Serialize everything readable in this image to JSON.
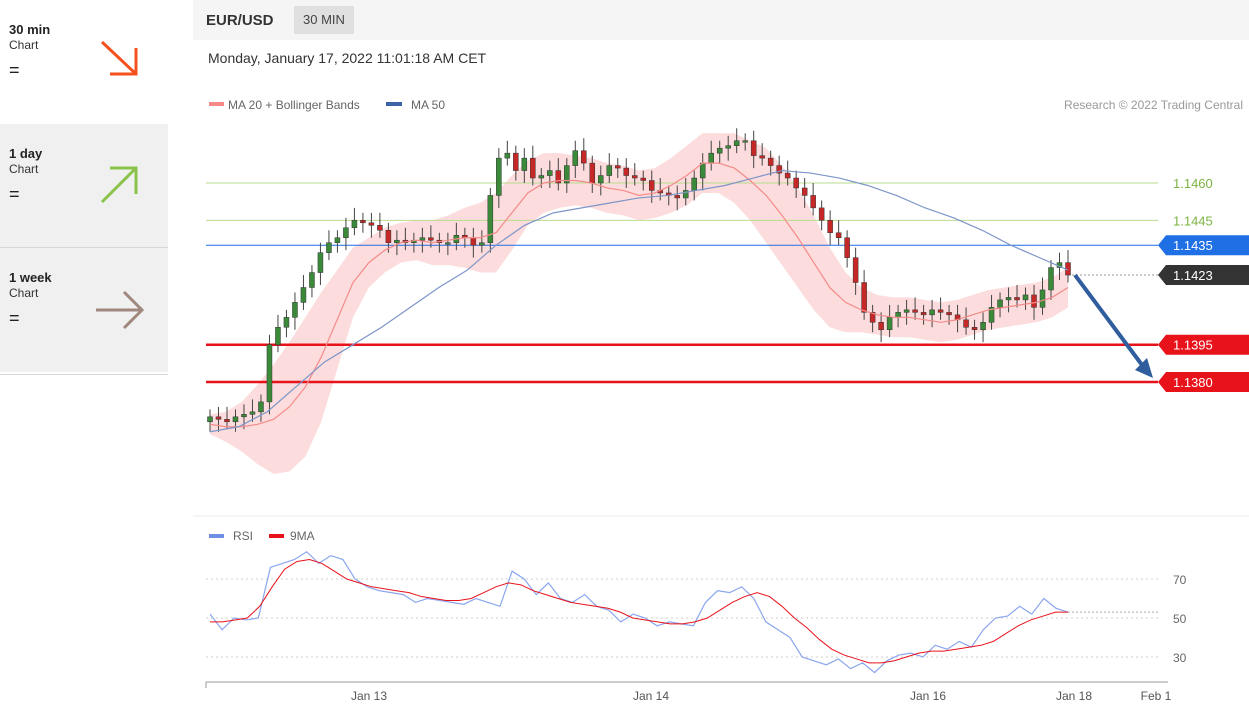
{
  "sidebar": {
    "items": [
      {
        "title": "30 min",
        "sub": "Chart",
        "sign": "=",
        "direction": "down",
        "color": "#f4511e"
      },
      {
        "title": "1 day",
        "sub": "Chart",
        "sign": "=",
        "direction": "up",
        "color": "#8bc34a"
      },
      {
        "title": "1 week",
        "sub": "Chart",
        "sign": "=",
        "direction": "flat",
        "color": "#a1887f"
      }
    ]
  },
  "header": {
    "symbol": "EUR/USD",
    "timeframe": "30 MIN",
    "datetime": "Monday, January 17, 2022 11:01:18 AM CET"
  },
  "chart_data": [
    {
      "type": "candlestick",
      "legend": [
        {
          "name": "MA 20 + Bollinger Bands",
          "color": "#f48a8a"
        },
        {
          "name": "MA 50",
          "color": "#3f63a8"
        }
      ],
      "credit": "Research © 2022 Trading Central",
      "ylim": [
        1.1355,
        1.1495
      ],
      "x_ticks": [
        "Jan 13",
        "Jan 14",
        "Jan 16",
        "Jan 18",
        "Feb 1"
      ],
      "levels": [
        {
          "label": "1.1460",
          "value": 1.146,
          "color": "#7cb342",
          "style": "thin-text"
        },
        {
          "label": "1.1445",
          "value": 1.1445,
          "color": "#7cb342",
          "style": "thin-text"
        },
        {
          "label": "1.1435",
          "value": 1.1435,
          "color": "#1f6fe5",
          "style": "badge"
        },
        {
          "label": "1.1423",
          "value": 1.1423,
          "color": "#333333",
          "style": "badge-current"
        },
        {
          "label": "1.1395",
          "value": 1.1395,
          "color": "#e8121b",
          "style": "badge-thick"
        },
        {
          "label": "1.1380",
          "value": 1.138,
          "color": "#e8121b",
          "style": "badge-thick"
        }
      ],
      "forecast_arrow": {
        "from": 1.1423,
        "to": 1.138,
        "color": "#2f5d9e"
      },
      "close_series": [
        1.1366,
        1.1365,
        1.1364,
        1.1366,
        1.1367,
        1.1368,
        1.1372,
        1.1395,
        1.1402,
        1.1406,
        1.1412,
        1.1418,
        1.1424,
        1.1432,
        1.1436,
        1.1438,
        1.1442,
        1.1445,
        1.1444,
        1.1443,
        1.1441,
        1.1436,
        1.1437,
        1.1436,
        1.1437,
        1.1438,
        1.1437,
        1.1436,
        1.1436,
        1.1439,
        1.1438,
        1.1435,
        1.1436,
        1.1455,
        1.147,
        1.1472,
        1.1465,
        1.147,
        1.1462,
        1.1463,
        1.1465,
        1.146,
        1.1467,
        1.1473,
        1.1468,
        1.146,
        1.1463,
        1.1467,
        1.1466,
        1.1463,
        1.1462,
        1.1461,
        1.1457,
        1.1456,
        1.1455,
        1.1454,
        1.1457,
        1.1462,
        1.1468,
        1.1472,
        1.1474,
        1.1475,
        1.1477,
        1.1477,
        1.1471,
        1.147,
        1.1467,
        1.1464,
        1.1462,
        1.1458,
        1.1455,
        1.145,
        1.1445,
        1.144,
        1.1438,
        1.143,
        1.142,
        1.1408,
        1.1404,
        1.1401,
        1.1406,
        1.1408,
        1.1409,
        1.1408,
        1.1407,
        1.1409,
        1.1408,
        1.1407,
        1.1405,
        1.1402,
        1.1401,
        1.1404,
        1.141,
        1.1413,
        1.1414,
        1.1413,
        1.1415,
        1.141,
        1.1417,
        1.1426,
        1.1428,
        1.1423
      ],
      "ma20_series": [
        1.1363,
        1.1362,
        1.1362,
        1.1363,
        1.1365,
        1.137,
        1.1378,
        1.139,
        1.1405,
        1.142,
        1.1428,
        1.1433,
        1.1436,
        1.1437,
        1.1436,
        1.1437,
        1.1438,
        1.1438,
        1.144,
        1.1448,
        1.1456,
        1.146,
        1.1461,
        1.1461,
        1.146,
        1.1458,
        1.1457,
        1.1455,
        1.1456,
        1.1459,
        1.1463,
        1.1468,
        1.1468,
        1.1466,
        1.1461,
        1.1455,
        1.1447,
        1.1438,
        1.1428,
        1.1418,
        1.1412,
        1.1409,
        1.1407,
        1.1406,
        1.1406,
        1.1405,
        1.1404,
        1.1405,
        1.1407,
        1.1409,
        1.141,
        1.1411,
        1.1412,
        1.1414,
        1.1418
      ],
      "ma50_series": [
        1.136,
        1.1362,
        1.1368,
        1.1378,
        1.1388,
        1.1395,
        1.1402,
        1.141,
        1.1418,
        1.1425,
        1.1435,
        1.1443,
        1.1448,
        1.145,
        1.1452,
        1.1454,
        1.1455,
        1.1457,
        1.1459,
        1.1462,
        1.1465,
        1.1464,
        1.1462,
        1.1459,
        1.1455,
        1.145,
        1.1446,
        1.1441,
        1.1435,
        1.143,
        1.1425
      ]
    },
    {
      "type": "line",
      "legend": [
        {
          "name": "RSI",
          "color": "#6e8fe3"
        },
        {
          "name": "9MA",
          "color": "#e8121b"
        }
      ],
      "ylim": [
        20,
        85
      ],
      "y_ticks": [
        "70",
        "50",
        "30"
      ],
      "rsi_series": [
        52,
        44,
        50,
        49,
        50,
        76,
        78,
        80,
        84,
        78,
        82,
        80,
        70,
        66,
        64,
        63,
        62,
        58,
        60,
        59,
        58,
        57,
        60,
        58,
        56,
        74,
        70,
        62,
        68,
        60,
        58,
        62,
        56,
        54,
        48,
        52,
        50,
        46,
        48,
        47,
        46,
        58,
        64,
        63,
        66,
        60,
        48,
        44,
        40,
        30,
        28,
        26,
        29,
        24,
        27,
        22,
        28,
        31,
        32,
        30,
        36,
        34,
        38,
        35,
        44,
        50,
        51,
        56,
        52,
        60,
        55,
        53
      ],
      "ma9_series": [
        48,
        48,
        49,
        50,
        56,
        66,
        75,
        79,
        80,
        78,
        74,
        70,
        68,
        66,
        65,
        64,
        63,
        61,
        60,
        59,
        59,
        60,
        63,
        66,
        68,
        67,
        64,
        62,
        60,
        58,
        57,
        56,
        55,
        53,
        50,
        49,
        48,
        47,
        47,
        48,
        50,
        54,
        58,
        61,
        63,
        61,
        56,
        50,
        45,
        39,
        34,
        31,
        29,
        27,
        27,
        28,
        30,
        32,
        33,
        33,
        34,
        35,
        36,
        38,
        42,
        46,
        49,
        51,
        53,
        53
      ]
    }
  ]
}
